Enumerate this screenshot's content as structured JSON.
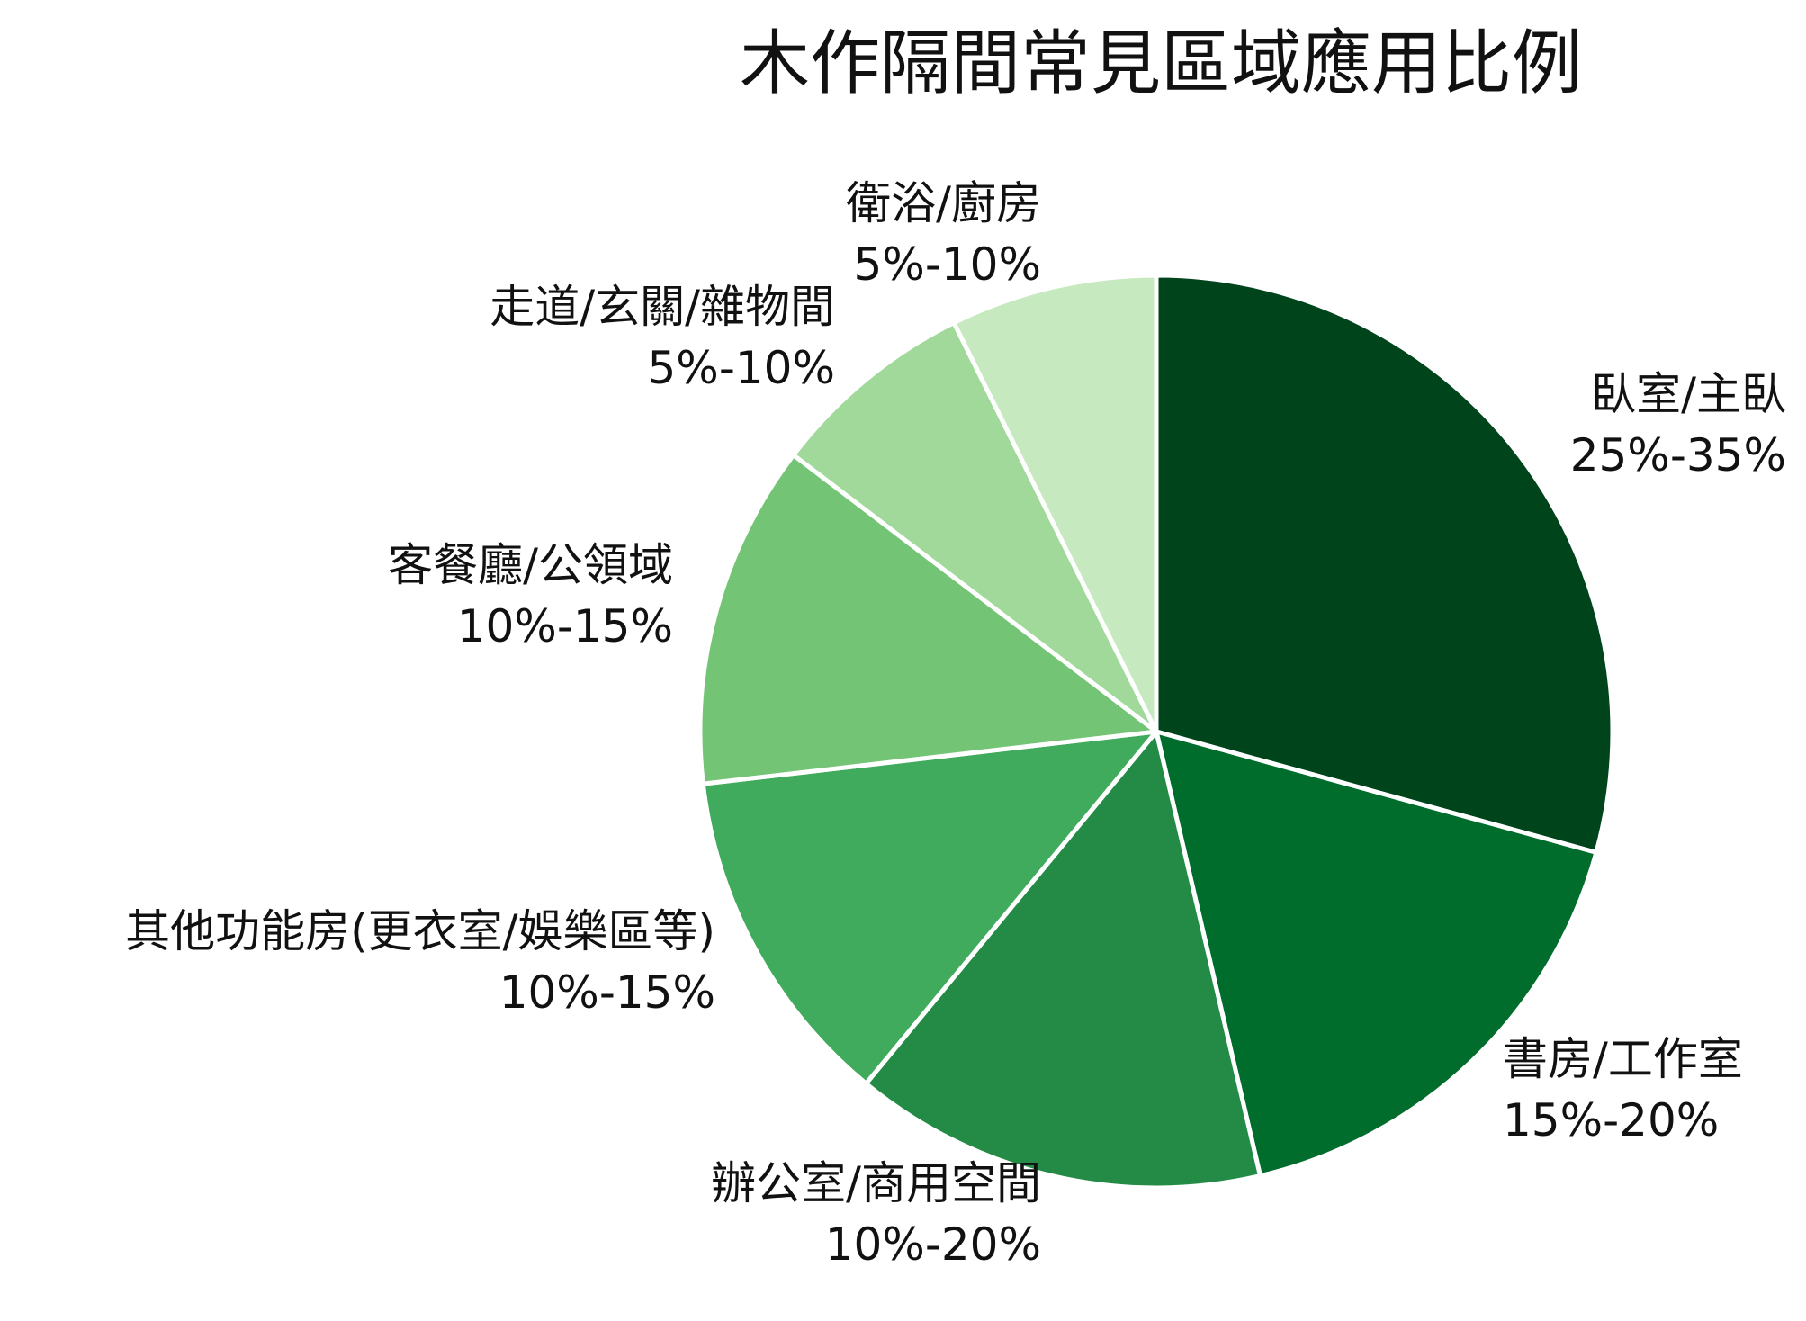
{
  "chart_data": {
    "type": "pie",
    "title": "木作隔間常見區域應用比例",
    "start_angle_deg": 0,
    "direction": "clockwise",
    "slices": [
      {
        "name": "臥室/主臥",
        "range": "25%-35%",
        "value": 30,
        "color": "#00441b"
      },
      {
        "name": "書房/工作室",
        "range": "15%-20%",
        "value": 17.5,
        "color": "#006d2c"
      },
      {
        "name": "辦公室/商用空間",
        "range": "10%-20%",
        "value": 15,
        "color": "#238b45"
      },
      {
        "name": "其他功能房(更衣室/娛樂區等)",
        "range": "10%-15%",
        "value": 12.5,
        "color": "#41ab5d"
      },
      {
        "name": "客餐廳/公領域",
        "range": "10%-15%",
        "value": 12.5,
        "color": "#74c476"
      },
      {
        "name": "走道/玄關/雜物間",
        "range": "5%-10%",
        "value": 7.5,
        "color": "#a1d99b"
      },
      {
        "name": "衛浴/廚房",
        "range": "5%-10%",
        "value": 7.5,
        "color": "#c7e9c0"
      }
    ]
  }
}
